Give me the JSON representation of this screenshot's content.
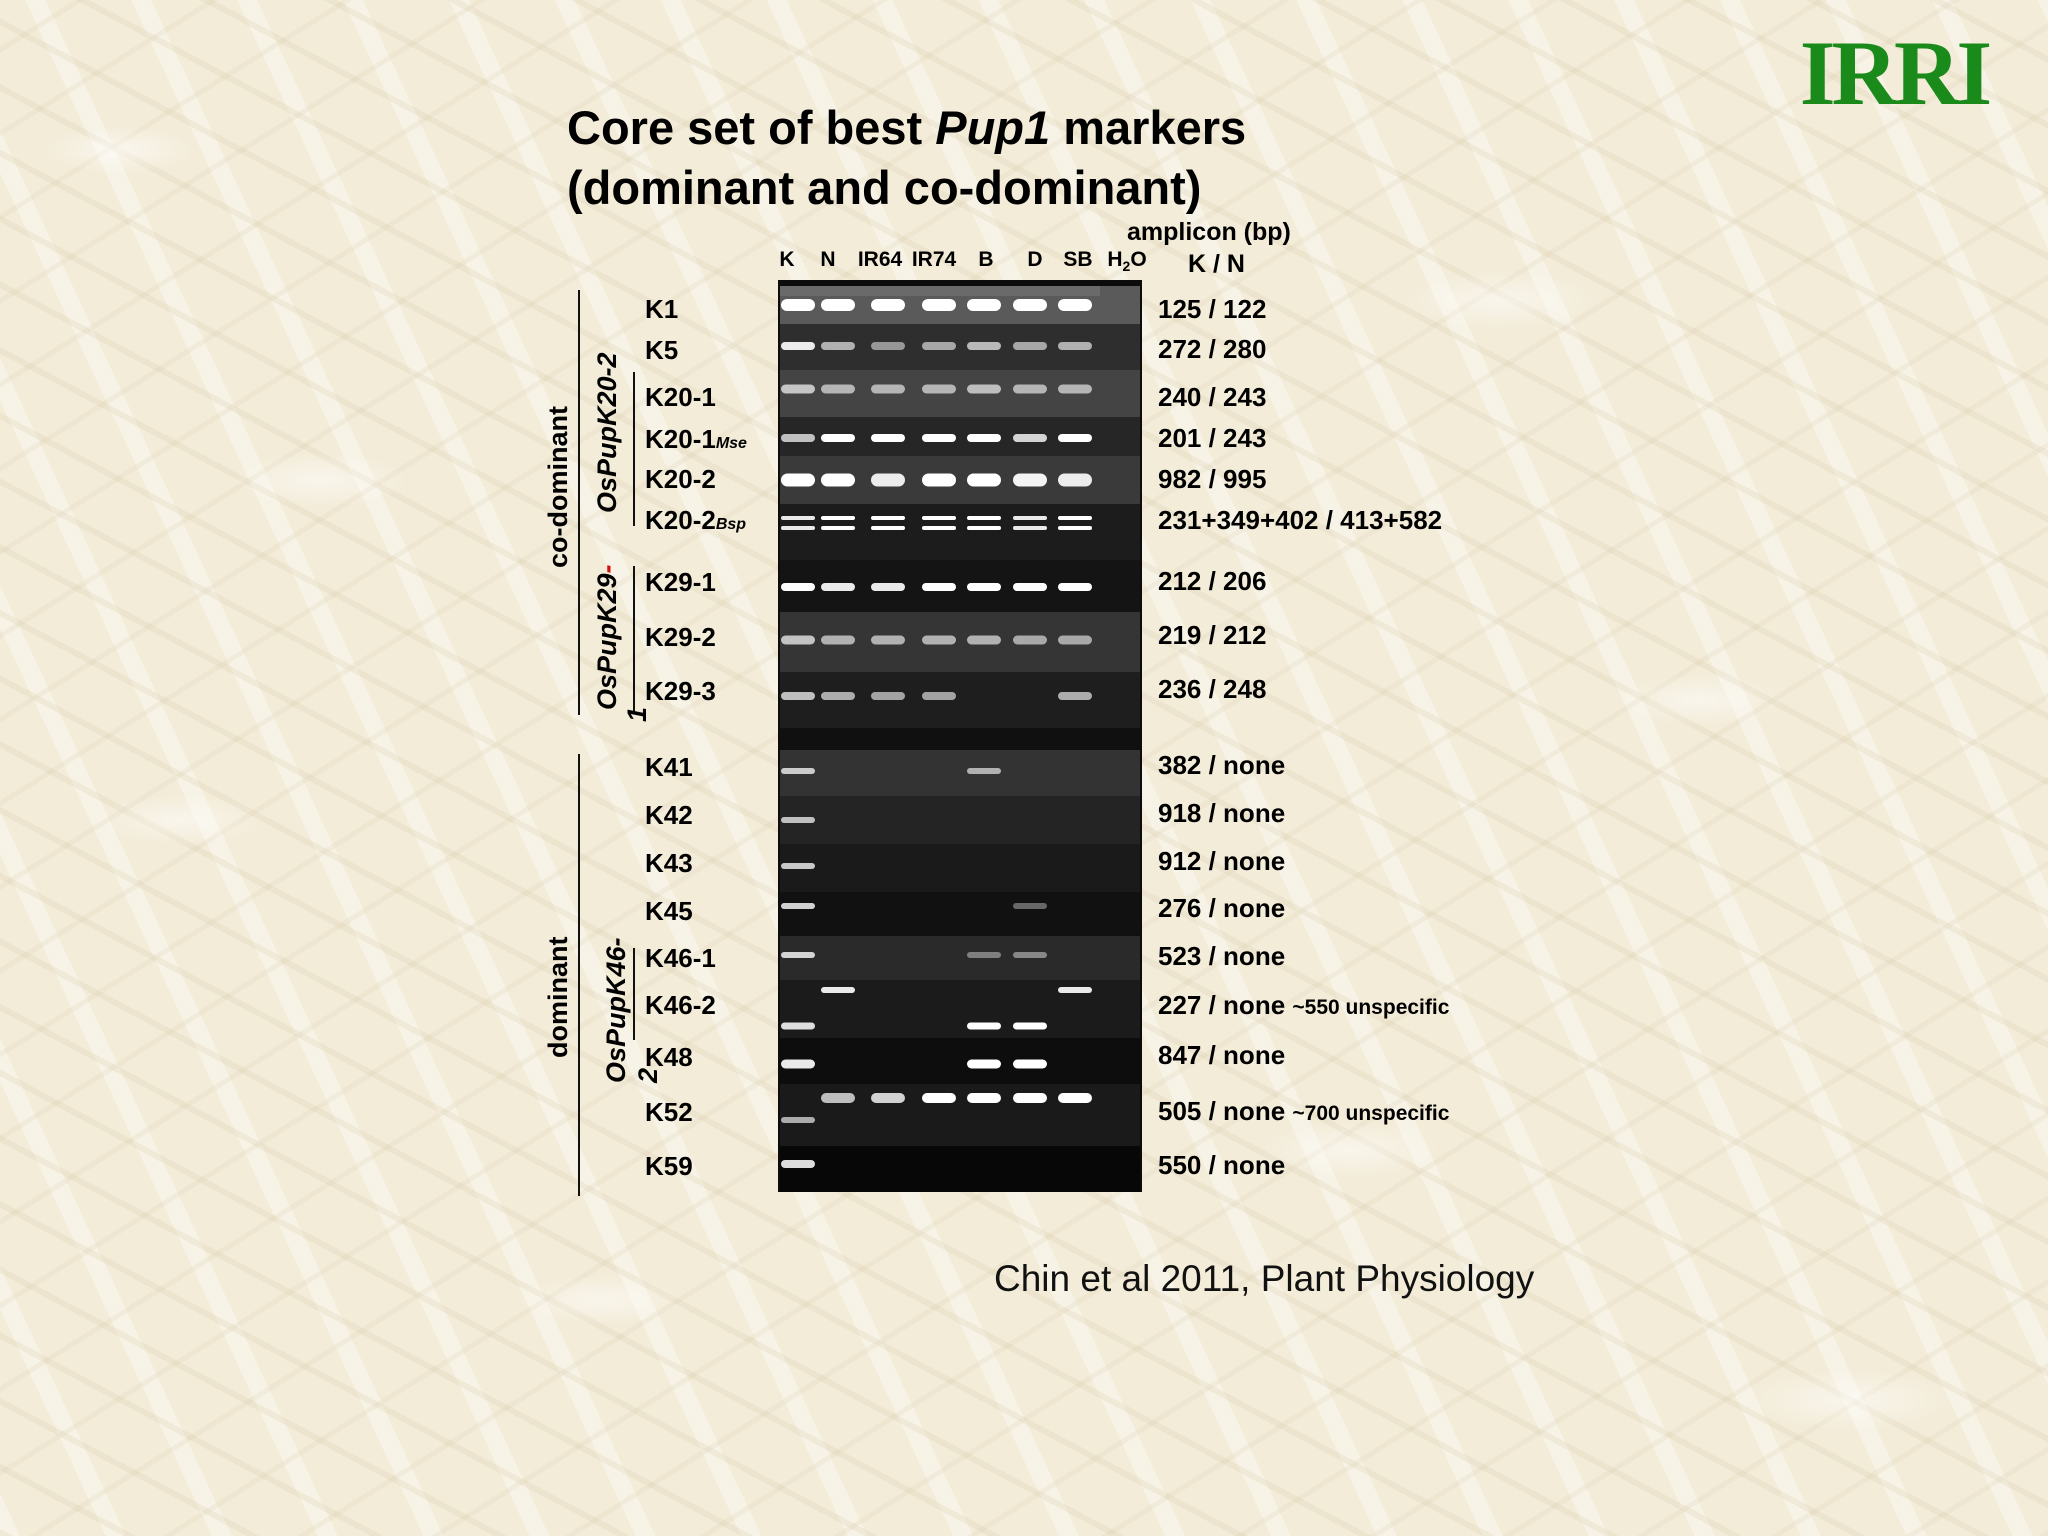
{
  "logo": {
    "text": "IRRI",
    "color": "#1a8a1a"
  },
  "title": {
    "line1_prefix": "Core set of best ",
    "line1_italic": "Pup1",
    "line1_suffix": " markers",
    "line2": "(dominant and co-dominant)"
  },
  "lanes": [
    "K",
    "N",
    "IR64",
    "IR74",
    "B",
    "D",
    "SB",
    "H"
  ],
  "lane_h2o_sub": "2",
  "lane_h2o_tail": "O",
  "amplicon_header": {
    "line1": "amplicon (bp)",
    "line2": "K / N"
  },
  "groups": {
    "codominant": "co-dominant",
    "dominant": "dominant",
    "k20": "OsPupK20-2",
    "k29_main": "OsPupK29",
    "k29_dash": "-",
    "k29_num": "1",
    "k46_main": "OsPupK46-",
    "k46_num": "2"
  },
  "markers": [
    {
      "name": "K1",
      "sub": "",
      "amplicon": "125 / 122",
      "note": ""
    },
    {
      "name": "K5",
      "sub": "",
      "amplicon": "272 / 280",
      "note": ""
    },
    {
      "name": "K20-1",
      "sub": "",
      "amplicon": "240 / 243",
      "note": ""
    },
    {
      "name": "K20-1",
      "sub": "Mse",
      "amplicon": "201 / 243",
      "note": ""
    },
    {
      "name": "K20-2",
      "sub": "",
      "amplicon": "982 / 995",
      "note": ""
    },
    {
      "name": "K20-2",
      "sub": "Bsp",
      "amplicon": "231+349+402 / 413+582",
      "note": ""
    },
    {
      "name": "K29-1",
      "sub": "",
      "amplicon": "212 / 206",
      "note": ""
    },
    {
      "name": "K29-2",
      "sub": "",
      "amplicon": "219 / 212",
      "note": ""
    },
    {
      "name": "K29-3",
      "sub": "",
      "amplicon": "236 / 248",
      "note": ""
    },
    {
      "name": "K41",
      "sub": "",
      "amplicon": "382 / none",
      "note": ""
    },
    {
      "name": "K42",
      "sub": "",
      "amplicon": "918 / none",
      "note": ""
    },
    {
      "name": "K43",
      "sub": "",
      "amplicon": "912 / none",
      "note": ""
    },
    {
      "name": "K45",
      "sub": "",
      "amplicon": "276 / none",
      "note": ""
    },
    {
      "name": "K46-1",
      "sub": "",
      "amplicon": "523 / none",
      "note": ""
    },
    {
      "name": "K46-2",
      "sub": "",
      "amplicon": "227 / none",
      "note": "~550 unspecific"
    },
    {
      "name": "K48",
      "sub": "",
      "amplicon": "847 / none",
      "note": ""
    },
    {
      "name": "K52",
      "sub": "",
      "amplicon": "505 / none",
      "note": "~700 unspecific"
    },
    {
      "name": "K59",
      "sub": "",
      "amplicon": "550 / none",
      "note": ""
    }
  ],
  "citation": "Chin et al 2011, Plant Physiology"
}
